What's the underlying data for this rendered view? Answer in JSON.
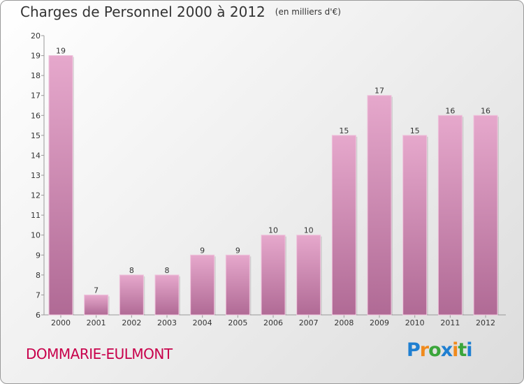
{
  "title": "Charges de Personnel 2000 à 2012",
  "subtitle": "(en milliers d'€)",
  "commune": "DOMMARIE-EULMONT",
  "logo": {
    "letters": [
      "P",
      "r",
      "o",
      "x",
      "i",
      "t",
      "i"
    ],
    "colors": [
      "#1f7fd1",
      "#f08a1c",
      "#3aa53a",
      "#1f7fd1",
      "#f08a1c",
      "#3aa53a",
      "#1f7fd1"
    ]
  },
  "chart_data": {
    "type": "bar",
    "categories": [
      "2000",
      "2001",
      "2002",
      "2003",
      "2004",
      "2005",
      "2006",
      "2007",
      "2008",
      "2009",
      "2010",
      "2011",
      "2012"
    ],
    "values": [
      19,
      7,
      8,
      8,
      9,
      9,
      10,
      10,
      15,
      17,
      15,
      16,
      16
    ],
    "ylim": [
      6,
      20
    ],
    "yticks": [
      6,
      7,
      8,
      9,
      10,
      11,
      12,
      13,
      14,
      15,
      16,
      17,
      18,
      19,
      20
    ],
    "xlabel": "",
    "ylabel": "",
    "grid": false,
    "bar_color_top": "#e6a8cc",
    "bar_color_bottom": "#b06a95"
  }
}
